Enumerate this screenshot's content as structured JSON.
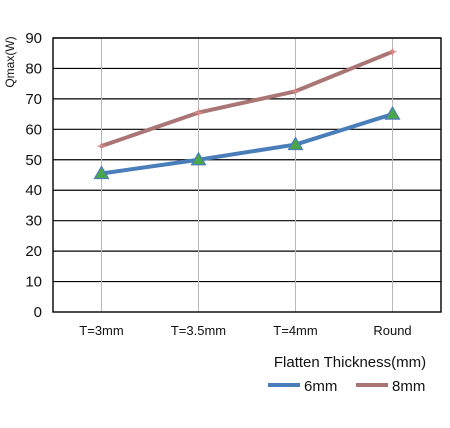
{
  "chart_data": {
    "type": "line",
    "title": "",
    "xlabel": "Flatten Thickness(mm)",
    "ylabel": "Qmax(W)",
    "categories": [
      "T=3mm",
      "T=3.5mm",
      "T=4mm",
      "Round"
    ],
    "ylim": [
      0,
      90
    ],
    "yticks": [
      0,
      10,
      20,
      30,
      40,
      50,
      60,
      70,
      80,
      90
    ],
    "grid": "horizontal and vertical",
    "legend": "bottom-right",
    "series": [
      {
        "name": "6mm",
        "values": [
          45.5,
          50,
          55,
          65
        ],
        "color": "#4a7ebb",
        "marker": "triangle",
        "marker_color": "#4aa64a"
      },
      {
        "name": "8mm",
        "values": [
          54.5,
          65.5,
          72.5,
          85.5
        ],
        "color": "#aa7575",
        "marker": "cross",
        "marker_color": "#e08a8a"
      }
    ]
  }
}
